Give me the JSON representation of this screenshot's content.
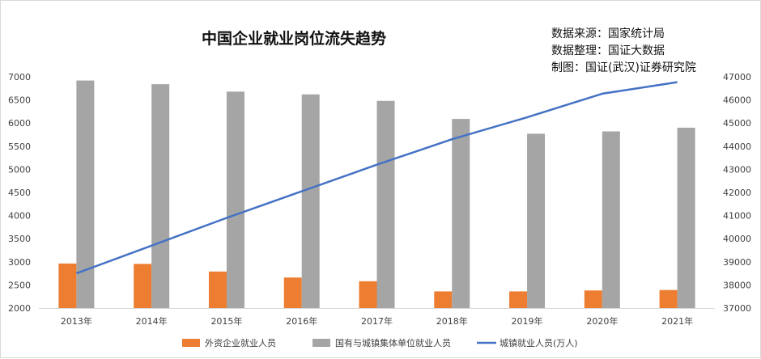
{
  "chart_data": {
    "type": "bar",
    "title": "中国企业就业岗位流失趋势",
    "source_lines": [
      "数据来源：国家统计局",
      "数据整理：国证大数据",
      "制图：国证(武汉)证券研究院"
    ],
    "categories": [
      "2013年",
      "2014年",
      "2015年",
      "2016年",
      "2017年",
      "2018年",
      "2019年",
      "2020年",
      "2021年"
    ],
    "series": [
      {
        "name": "外资企业就业人员",
        "type": "bar",
        "axis": "left",
        "color": "#ed7d31",
        "values": [
          2963,
          2955,
          2790,
          2660,
          2580,
          2360,
          2360,
          2380,
          2390
        ]
      },
      {
        "name": "国有与城镇集体单位就业人员",
        "type": "bar",
        "axis": "left",
        "color": "#a5a5a5",
        "values": [
          6920,
          6840,
          6680,
          6620,
          6480,
          6090,
          5770,
          5820,
          5900
        ]
      },
      {
        "name": "城镇就业人员(万人)",
        "type": "line",
        "axis": "right",
        "color": "#4472c4",
        "values": [
          38500,
          39700,
          40900,
          42050,
          43200,
          44300,
          45250,
          46270,
          46770
        ]
      }
    ],
    "y_left": {
      "min": 2000,
      "max": 7000,
      "ticks": [
        2000,
        2500,
        3000,
        3500,
        4000,
        4500,
        5000,
        5500,
        6000,
        6500,
        7000
      ]
    },
    "y_right": {
      "min": 37000,
      "max": 47000,
      "ticks": [
        37000,
        38000,
        39000,
        40000,
        41000,
        42000,
        43000,
        44000,
        45000,
        46000,
        47000
      ]
    },
    "legend_position": "bottom",
    "grid": false
  }
}
